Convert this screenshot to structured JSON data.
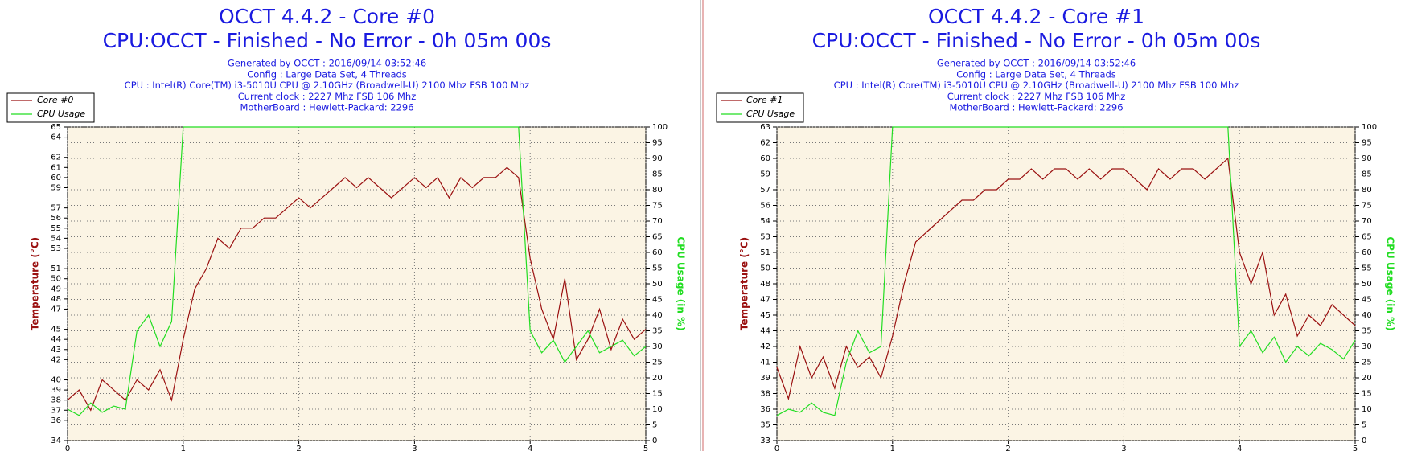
{
  "chart_data": [
    {
      "type": "line",
      "title": "OCCT 4.4.2 - Core #0",
      "subtitle": "CPU:OCCT - Finished - No Error - 0h 05m 00s",
      "info": [
        "Generated by OCCT : 2016/09/14 03:52:46",
        "Config : Large Data Set, 4 Threads",
        "CPU : Intel(R) Core(TM) i3-5010U CPU @ 2.10GHz (Broadwell-U) 2100 Mhz FSB 100 Mhz",
        "Current clock : 2227 Mhz FSB 106 Mhz",
        "MotherBoard : Hewlett-Packard: 2296"
      ],
      "y_label": "Temperature (°C)",
      "y2_label": "CPU Usage (in %)",
      "x": [
        0,
        0.1,
        0.2,
        0.3,
        0.4,
        0.5,
        0.6,
        0.7,
        0.8,
        0.9,
        1,
        1.1,
        1.2,
        1.3,
        1.4,
        1.5,
        1.6,
        1.7,
        1.8,
        1.9,
        2,
        2.1,
        2.2,
        2.3,
        2.4,
        2.5,
        2.6,
        2.7,
        2.8,
        2.9,
        3,
        3.1,
        3.2,
        3.3,
        3.4,
        3.5,
        3.6,
        3.7,
        3.8,
        3.9,
        4,
        4.1,
        4.2,
        4.3,
        4.4,
        4.5,
        4.6,
        4.7,
        4.8,
        4.9,
        5
      ],
      "xlim": [
        0,
        5
      ],
      "xticks": [
        0,
        1,
        2,
        3,
        4,
        5
      ],
      "ylim": [
        34,
        65
      ],
      "yticks": [
        34,
        36,
        37,
        38,
        39,
        40,
        42,
        43,
        44,
        45,
        47,
        48,
        49,
        50,
        51,
        53,
        54,
        55,
        56,
        57,
        59,
        60,
        61,
        62,
        64,
        65
      ],
      "y2lim": [
        0,
        100
      ],
      "y2ticks": [
        0,
        5,
        10,
        15,
        20,
        25,
        30,
        35,
        40,
        45,
        50,
        55,
        60,
        65,
        70,
        75,
        80,
        85,
        90,
        95,
        100
      ],
      "grid": true,
      "legend": "upper-left",
      "series": [
        {
          "name": "Core #0",
          "color": "#9a1010",
          "values": [
            38,
            39,
            37,
            40,
            39,
            38,
            40,
            39,
            41,
            38,
            44,
            49,
            51,
            54,
            53,
            55,
            55,
            56,
            56,
            57,
            58,
            57,
            58,
            59,
            60,
            59,
            60,
            59,
            58,
            59,
            60,
            59,
            60,
            58,
            60,
            59,
            60,
            60,
            61,
            60,
            52,
            47,
            44,
            50,
            42,
            44,
            47,
            43,
            46,
            44,
            45
          ]
        },
        {
          "name": "CPU Usage",
          "color": "#22dd22",
          "axis": "y2",
          "values": [
            10,
            8,
            12,
            9,
            11,
            10,
            35,
            40,
            30,
            38,
            100,
            100,
            100,
            100,
            100,
            100,
            100,
            100,
            100,
            100,
            100,
            100,
            100,
            100,
            100,
            100,
            100,
            100,
            100,
            100,
            100,
            100,
            100,
            100,
            100,
            100,
            100,
            100,
            100,
            100,
            35,
            28,
            32,
            25,
            30,
            35,
            28,
            30,
            32,
            27,
            30
          ]
        }
      ]
    },
    {
      "type": "line",
      "title": "OCCT 4.4.2 - Core #1",
      "subtitle": "CPU:OCCT - Finished - No Error - 0h 05m 00s",
      "info": [
        "Generated by OCCT : 2016/09/14 03:52:46",
        "Config : Large Data Set, 4 Threads",
        "CPU : Intel(R) Core(TM) i3-5010U CPU @ 2.10GHz (Broadwell-U) 2100 Mhz FSB 100 Mhz",
        "Current clock : 2227 Mhz FSB 106 Mhz",
        "MotherBoard : Hewlett-Packard: 2296"
      ],
      "y_label": "Temperature (°C)",
      "y2_label": "CPU Usage (in %)",
      "x": [
        0,
        0.1,
        0.2,
        0.3,
        0.4,
        0.5,
        0.6,
        0.7,
        0.8,
        0.9,
        1,
        1.1,
        1.2,
        1.3,
        1.4,
        1.5,
        1.6,
        1.7,
        1.8,
        1.9,
        2,
        2.1,
        2.2,
        2.3,
        2.4,
        2.5,
        2.6,
        2.7,
        2.8,
        2.9,
        3,
        3.1,
        3.2,
        3.3,
        3.4,
        3.5,
        3.6,
        3.7,
        3.8,
        3.9,
        4,
        4.1,
        4.2,
        4.3,
        4.4,
        4.5,
        4.6,
        4.7,
        4.8,
        4.9,
        5
      ],
      "xlim": [
        0,
        5
      ],
      "xticks": [
        0,
        1,
        2,
        3,
        4,
        5
      ],
      "ylim": [
        33,
        63
      ],
      "yticks": [
        33,
        {
          "value": 34.5,
          "label": "35"
        },
        36,
        {
          "value": 37.5,
          "label": "38"
        },
        39,
        {
          "value": 40.5,
          "label": "41"
        },
        42,
        {
          "value": 43.5,
          "label": "44"
        },
        45,
        {
          "value": 46.5,
          "label": "47"
        },
        48,
        {
          "value": 49.5,
          "label": "50"
        },
        51,
        {
          "value": 52.5,
          "label": "53"
        },
        54,
        {
          "value": 55.5,
          "label": "56"
        },
        57,
        {
          "value": 58.5,
          "label": "59"
        },
        60,
        {
          "value": 61.5,
          "label": "62"
        },
        63
      ],
      "y2lim": [
        0,
        100
      ],
      "y2ticks": [
        0,
        5,
        10,
        15,
        20,
        25,
        30,
        35,
        40,
        45,
        50,
        55,
        60,
        65,
        70,
        75,
        80,
        85,
        90,
        95,
        100
      ],
      "grid": true,
      "legend": "upper-left",
      "series": [
        {
          "name": "Core #1",
          "color": "#9a1010",
          "values": [
            40,
            37,
            42,
            39,
            41,
            38,
            42,
            40,
            41,
            39,
            43,
            48,
            52,
            53,
            54,
            55,
            56,
            56,
            57,
            57,
            58,
            58,
            59,
            58,
            59,
            59,
            58,
            59,
            58,
            59,
            59,
            58,
            57,
            59,
            58,
            59,
            59,
            58,
            59,
            60,
            51,
            48,
            51,
            45,
            47,
            43,
            45,
            44,
            46,
            45,
            44
          ]
        },
        {
          "name": "CPU Usage",
          "color": "#22dd22",
          "axis": "y2",
          "values": [
            8,
            10,
            9,
            12,
            9,
            8,
            25,
            35,
            28,
            30,
            100,
            100,
            100,
            100,
            100,
            100,
            100,
            100,
            100,
            100,
            100,
            100,
            100,
            100,
            100,
            100,
            100,
            100,
            100,
            100,
            100,
            100,
            100,
            100,
            100,
            100,
            100,
            100,
            100,
            100,
            30,
            35,
            28,
            33,
            25,
            30,
            27,
            31,
            29,
            26,
            32
          ]
        }
      ]
    }
  ]
}
